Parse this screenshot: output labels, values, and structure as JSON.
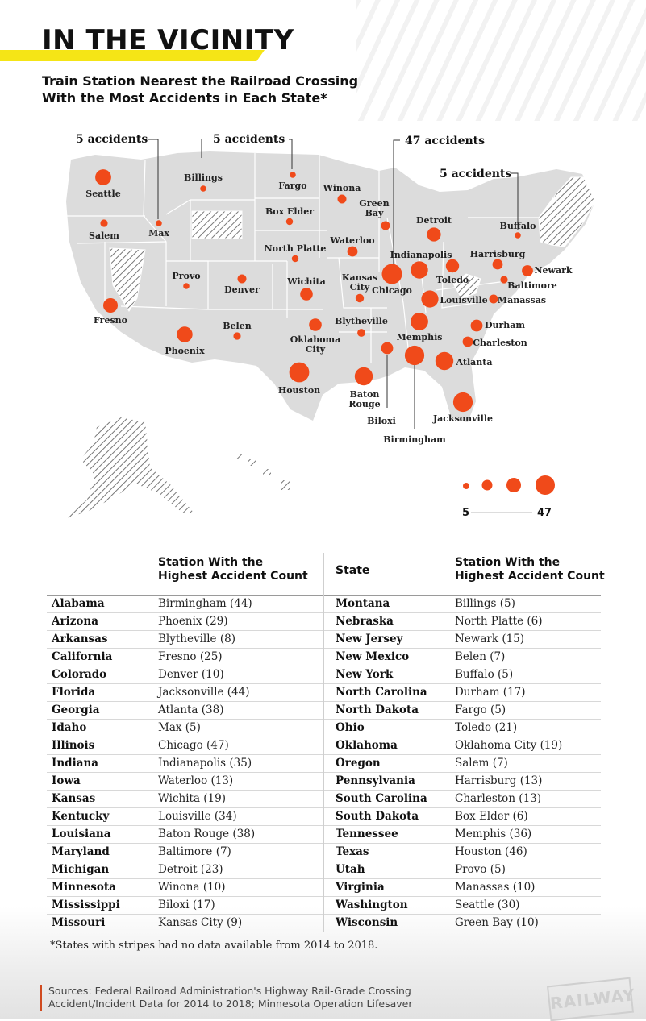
{
  "header": {
    "title": "IN THE VICINITY",
    "subtitle_line1": "Train Station Nearest the Railroad Crossing",
    "subtitle_line2": "With the Most Accidents in Each State*"
  },
  "colors": {
    "accent_dot": "#f04a1a",
    "land": "#dcdcdc",
    "title_bar": "#f5e516",
    "source_rule": "#d04a1f"
  },
  "map": {
    "callouts": [
      "5 accidents",
      "5 accidents",
      "47 accidents",
      "5 accidents"
    ],
    "stations": [
      {
        "name": "Seattle",
        "count": 30
      },
      {
        "name": "Salem",
        "count": 7
      },
      {
        "name": "Max",
        "count": 5
      },
      {
        "name": "Billings",
        "count": 5
      },
      {
        "name": "Fargo",
        "count": 5
      },
      {
        "name": "Winona",
        "count": 10
      },
      {
        "name": "Green Bay",
        "count": 10
      },
      {
        "name": "Box Elder",
        "count": 6
      },
      {
        "name": "North Platte",
        "count": 6
      },
      {
        "name": "Waterloo",
        "count": 13
      },
      {
        "name": "Detroit",
        "count": 23
      },
      {
        "name": "Buffalo",
        "count": 5
      },
      {
        "name": "Provo",
        "count": 5
      },
      {
        "name": "Denver",
        "count": 10
      },
      {
        "name": "Wichita",
        "count": 19
      },
      {
        "name": "Kansas City",
        "count": 9
      },
      {
        "name": "Chicago",
        "count": 47
      },
      {
        "name": "Indianapolis",
        "count": 35
      },
      {
        "name": "Toledo",
        "count": 21
      },
      {
        "name": "Harrisburg",
        "count": 13
      },
      {
        "name": "Newark",
        "count": 15
      },
      {
        "name": "Baltimore",
        "count": 7
      },
      {
        "name": "Manassas",
        "count": 10
      },
      {
        "name": "Louisville",
        "count": 34
      },
      {
        "name": "Fresno",
        "count": 25
      },
      {
        "name": "Phoenix",
        "count": 29
      },
      {
        "name": "Belen",
        "count": 7
      },
      {
        "name": "Oklahoma City",
        "count": 19
      },
      {
        "name": "Blytheville",
        "count": 8
      },
      {
        "name": "Memphis",
        "count": 36
      },
      {
        "name": "Durham",
        "count": 17
      },
      {
        "name": "Charleston",
        "count": 13
      },
      {
        "name": "Atlanta",
        "count": 38
      },
      {
        "name": "Houston",
        "count": 46
      },
      {
        "name": "Baton Rouge",
        "count": 38
      },
      {
        "name": "Biloxi",
        "count": 17
      },
      {
        "name": "Birmingham",
        "count": 44
      },
      {
        "name": "Jacksonville",
        "count": 44
      }
    ],
    "legend": {
      "min_label": "5",
      "max_label": "47"
    }
  },
  "table": {
    "header_state": "State",
    "header_station_line1": "Station With the",
    "header_station_line2": "Highest Accident Count",
    "left_rows": [
      {
        "state": "Alabama",
        "station": "Birmingham (44)"
      },
      {
        "state": "Arizona",
        "station": "Phoenix (29)"
      },
      {
        "state": "Arkansas",
        "station": "Blytheville (8)"
      },
      {
        "state": "California",
        "station": "Fresno (25)"
      },
      {
        "state": "Colorado",
        "station": "Denver (10)"
      },
      {
        "state": "Florida",
        "station": "Jacksonville (44)"
      },
      {
        "state": "Georgia",
        "station": "Atlanta (38)"
      },
      {
        "state": "Idaho",
        "station": "Max (5)"
      },
      {
        "state": "Illinois",
        "station": "Chicago (47)"
      },
      {
        "state": "Indiana",
        "station": "Indianapolis (35)"
      },
      {
        "state": "Iowa",
        "station": "Waterloo (13)"
      },
      {
        "state": "Kansas",
        "station": "Wichita (19)"
      },
      {
        "state": "Kentucky",
        "station": "Louisville (34)"
      },
      {
        "state": "Louisiana",
        "station": "Baton Rouge (38)"
      },
      {
        "state": "Maryland",
        "station": "Baltimore (7)"
      },
      {
        "state": "Michigan",
        "station": "Detroit (23)"
      },
      {
        "state": "Minnesota",
        "station": "Winona (10)"
      },
      {
        "state": "Mississippi",
        "station": "Biloxi (17)"
      },
      {
        "state": "Missouri",
        "station": "Kansas City (9)"
      }
    ],
    "right_rows": [
      {
        "state": "Montana",
        "station": "Billings (5)"
      },
      {
        "state": "Nebraska",
        "station": "North Platte (6)"
      },
      {
        "state": "New Jersey",
        "station": "Newark (15)"
      },
      {
        "state": "New Mexico",
        "station": "Belen (7)"
      },
      {
        "state": "New York",
        "station": "Buffalo (5)"
      },
      {
        "state": "North Carolina",
        "station": "Durham (17)"
      },
      {
        "state": "North Dakota",
        "station": "Fargo (5)"
      },
      {
        "state": "Ohio",
        "station": "Toledo (21)"
      },
      {
        "state": "Oklahoma",
        "station": "Oklahoma City (19)"
      },
      {
        "state": "Oregon",
        "station": "Salem (7)"
      },
      {
        "state": "Pennsylvania",
        "station": "Harrisburg (13)"
      },
      {
        "state": "South Carolina",
        "station": "Charleston (13)"
      },
      {
        "state": "South Dakota",
        "station": "Box Elder (6)"
      },
      {
        "state": "Tennessee",
        "station": "Memphis (36)"
      },
      {
        "state": "Texas",
        "station": "Houston (46)"
      },
      {
        "state": "Utah",
        "station": "Provo (5)"
      },
      {
        "state": "Virginia",
        "station": "Manassas (10)"
      },
      {
        "state": "Washington",
        "station": "Seattle (30)"
      },
      {
        "state": "Wisconsin",
        "station": "Green Bay (10)"
      }
    ]
  },
  "footnote": "*States with stripes had no data available from 2014 to 2018.",
  "sources_line1": "Sources: Federal Railroad Administration's Highway Rail-Grade Crossing",
  "sources_line2": "Accident/Incident Data for 2014 to 2018; Minnesota Operation Lifesaver",
  "brand": "RAILWAY"
}
